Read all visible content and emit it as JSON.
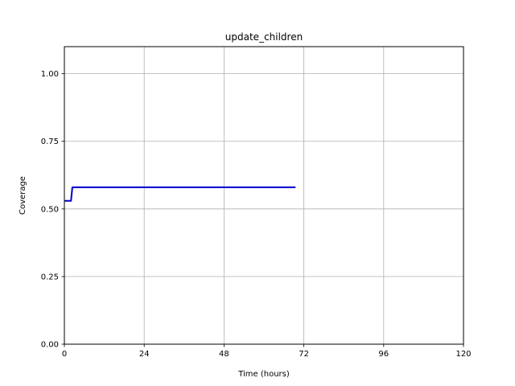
{
  "chart_data": {
    "type": "line",
    "title": "update_children",
    "xlabel": "Time (hours)",
    "ylabel": "Coverage",
    "xlim": [
      0,
      120
    ],
    "ylim": [
      0,
      1.1
    ],
    "xticks": [
      0,
      24,
      48,
      72,
      96,
      120
    ],
    "xtick_labels": [
      "0",
      "24",
      "48",
      "72",
      "96",
      "120"
    ],
    "yticks": [
      0,
      0.25,
      0.5,
      0.75,
      1.0
    ],
    "ytick_labels": [
      "0.00",
      "0.25",
      "0.50",
      "0.75",
      "1.00"
    ],
    "grid": true,
    "series": [
      {
        "color": "#0000cc",
        "x": [
          0,
          2,
          2.4,
          69.5
        ],
        "y": [
          0.53,
          0.53,
          0.58,
          0.58
        ]
      }
    ]
  }
}
